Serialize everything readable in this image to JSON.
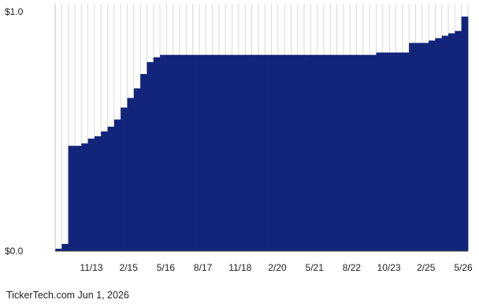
{
  "chart_data": {
    "type": "bar",
    "y_tick_labels": [
      "$1.0",
      "$0.0"
    ],
    "ylim": [
      0,
      1.0
    ],
    "x_tick_labels": [
      "11/13",
      "2/15",
      "5/16",
      "8/17",
      "11/18",
      "2/20",
      "5/21",
      "8/22",
      "10/23",
      "2/25",
      "5/26"
    ],
    "grid": "vertical",
    "bar_color": "#12257a",
    "values": [
      0.01,
      0.03,
      0.44,
      0.44,
      0.45,
      0.47,
      0.48,
      0.5,
      0.52,
      0.55,
      0.6,
      0.64,
      0.68,
      0.74,
      0.79,
      0.81,
      0.82,
      0.82,
      0.82,
      0.82,
      0.82,
      0.82,
      0.82,
      0.82,
      0.82,
      0.82,
      0.82,
      0.82,
      0.82,
      0.82,
      0.82,
      0.82,
      0.82,
      0.82,
      0.82,
      0.82,
      0.82,
      0.82,
      0.82,
      0.82,
      0.82,
      0.82,
      0.82,
      0.82,
      0.82,
      0.82,
      0.82,
      0.82,
      0.82,
      0.83,
      0.83,
      0.83,
      0.83,
      0.83,
      0.87,
      0.87,
      0.87,
      0.88,
      0.89,
      0.9,
      0.91,
      0.92,
      0.98
    ]
  },
  "footer": {
    "credit": "TickerTech.com  Jun 1, 2026"
  }
}
